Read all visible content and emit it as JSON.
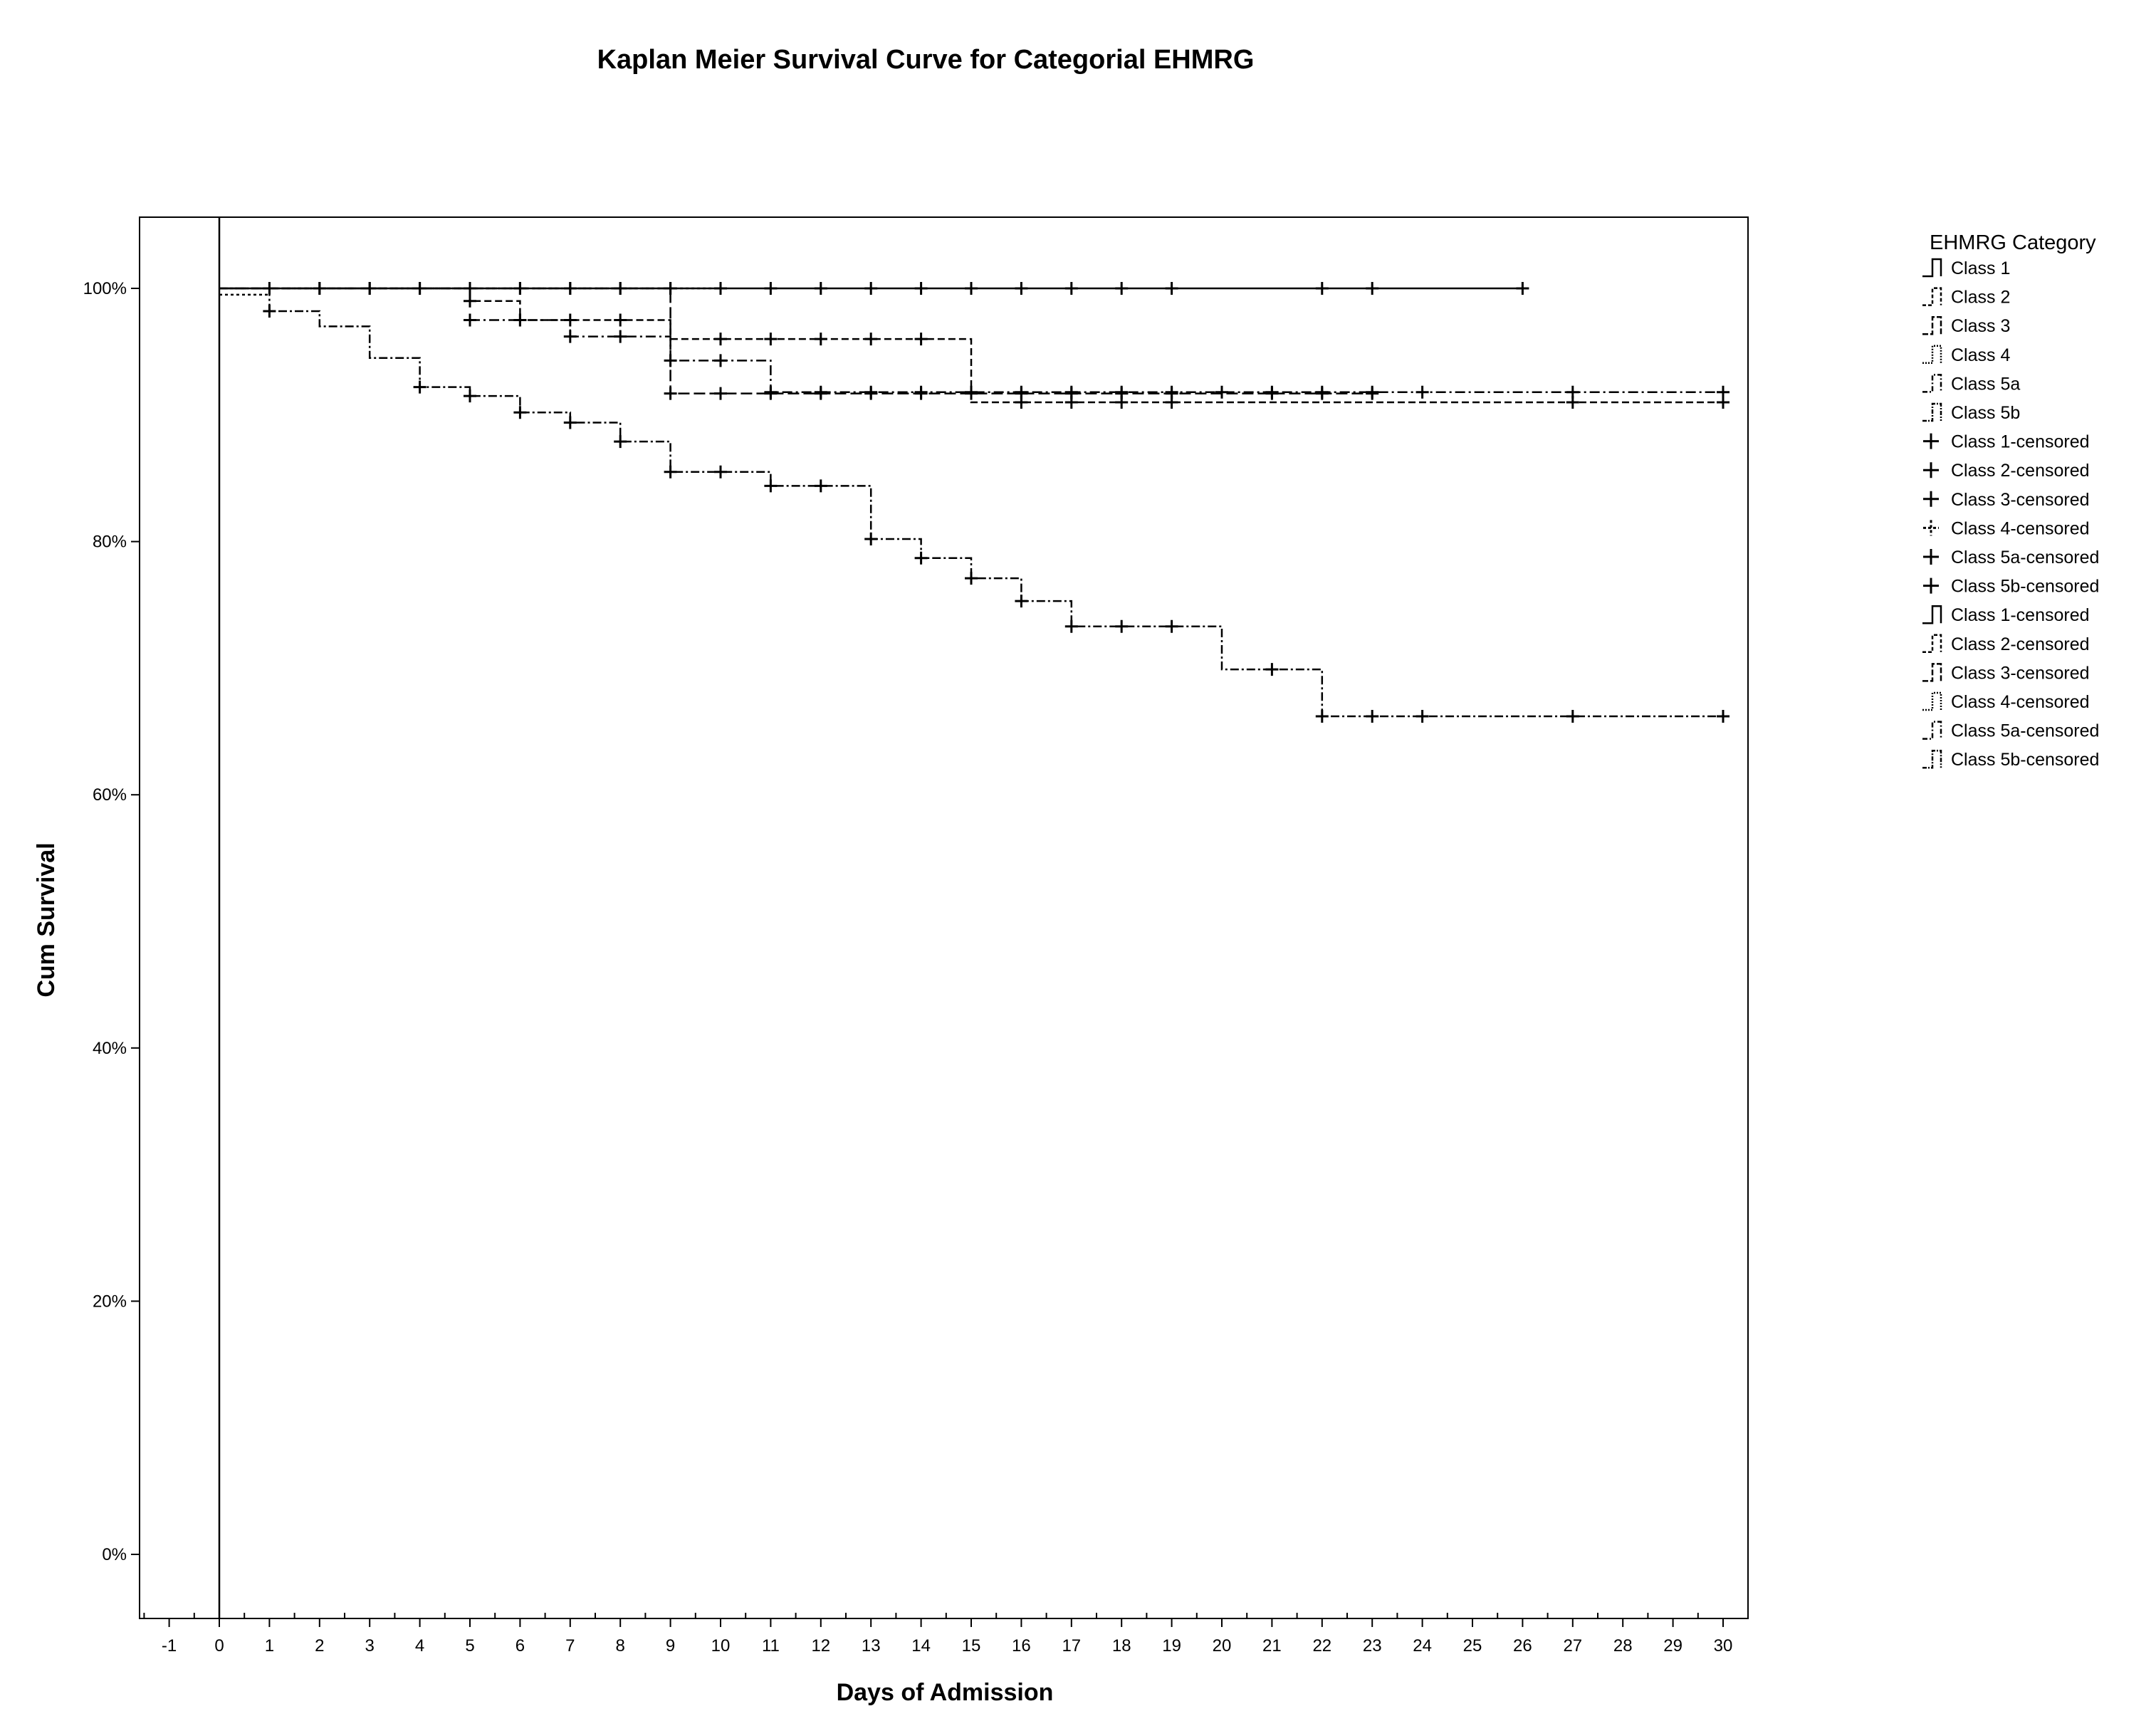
{
  "chart_data": {
    "type": "line",
    "title": "Kaplan Meier Survival Curve for Categorial EHMRG",
    "xlabel": "Days of Admission",
    "ylabel": "Cum Survival",
    "xlim": [
      -1,
      30
    ],
    "ylim": [
      0,
      1
    ],
    "x_ticks": [
      -1,
      0,
      1,
      2,
      3,
      4,
      5,
      6,
      7,
      8,
      9,
      10,
      11,
      12,
      13,
      14,
      15,
      16,
      17,
      18,
      19,
      20,
      21,
      22,
      23,
      24,
      25,
      26,
      27,
      28,
      29,
      30
    ],
    "y_ticks": [
      0,
      0.2,
      0.4,
      0.6,
      0.8,
      1.0
    ],
    "y_tick_labels": [
      "0%",
      "20%",
      "40%",
      "60%",
      "80%",
      "100%"
    ],
    "grid": false,
    "legend_position": "right",
    "legend_title": "EHMRG Category",
    "legend_items": [
      {
        "label": "Class 1",
        "kind": "line",
        "dash": ""
      },
      {
        "label": "Class 2",
        "kind": "line",
        "dash": "10,5"
      },
      {
        "label": "Class 3",
        "kind": "line",
        "dash": "16,6"
      },
      {
        "label": "Class 4",
        "kind": "line",
        "dash": "4,4"
      },
      {
        "label": "Class 5a",
        "kind": "line",
        "dash": "14,5,3,5"
      },
      {
        "label": "Class 5b",
        "kind": "line",
        "dash": "12,4,3,4"
      },
      {
        "label": "Class 1-censored",
        "kind": "marker",
        "dash": ""
      },
      {
        "label": "Class 2-censored",
        "kind": "marker",
        "dash": ""
      },
      {
        "label": "Class 3-censored",
        "kind": "marker",
        "dash": ""
      },
      {
        "label": "Class 4-censored",
        "kind": "marker",
        "dash": "4,3"
      },
      {
        "label": "Class 5a-censored",
        "kind": "marker",
        "dash": ""
      },
      {
        "label": "Class 5b-censored",
        "kind": "marker",
        "dash": ""
      },
      {
        "label": "Class 1-censored",
        "kind": "line",
        "dash": ""
      },
      {
        "label": "Class 2-censored",
        "kind": "line",
        "dash": "10,5"
      },
      {
        "label": "Class 3-censored",
        "kind": "line",
        "dash": "16,6"
      },
      {
        "label": "Class 4-censored",
        "kind": "line",
        "dash": "4,4"
      },
      {
        "label": "Class 5a-censored",
        "kind": "line",
        "dash": "14,5,3,5"
      },
      {
        "label": "Class 5b-censored",
        "kind": "line",
        "dash": "12,4,3,4"
      }
    ],
    "series": [
      {
        "name": "Class 1",
        "dash": "",
        "steps": [
          [
            0,
            1.0
          ]
        ],
        "end_x": 26,
        "censored": [
          1,
          2,
          3,
          4,
          5,
          6,
          7,
          8,
          9,
          10,
          11,
          12,
          13,
          14,
          15,
          16,
          17,
          18,
          19,
          22,
          23,
          26
        ]
      },
      {
        "name": "Class 2",
        "dash": "10,5",
        "steps": [
          [
            0,
            1.0
          ],
          [
            5,
            0.99
          ],
          [
            6,
            0.975
          ],
          [
            9,
            0.96
          ],
          [
            15,
            0.91
          ]
        ],
        "end_x": 30,
        "censored": [
          5,
          6,
          7,
          8,
          10,
          11,
          12,
          13,
          14,
          16,
          17,
          18,
          19,
          27,
          30
        ]
      },
      {
        "name": "Class 3",
        "dash": "16,6",
        "steps": [
          [
            0,
            1.0
          ],
          [
            9,
            0.917
          ]
        ],
        "end_x": 23,
        "censored": [
          9,
          10,
          11,
          12,
          13,
          14,
          15,
          16,
          17,
          18,
          19,
          21,
          22,
          23
        ]
      },
      {
        "name": "Class 4",
        "dash": "4,4",
        "steps": [
          [
            0,
            0.995
          ],
          [
            1,
            1.0
          ]
        ],
        "end_x": 10,
        "censored": [
          2,
          3,
          4,
          5,
          6,
          7,
          8,
          9,
          10
        ]
      },
      {
        "name": "Class 5a",
        "dash": "14,5,3,5",
        "steps": [
          [
            5,
            0.975
          ],
          [
            7,
            0.962
          ],
          [
            9,
            0.943
          ],
          [
            11,
            0.918
          ]
        ],
        "end_x": 30,
        "censored": [
          5,
          6,
          7,
          8,
          9,
          10,
          11,
          12,
          13,
          14,
          15,
          16,
          17,
          18,
          19,
          20,
          21,
          22,
          23,
          24,
          27,
          30
        ]
      },
      {
        "name": "Class 5b",
        "dash": "12,4,3,4",
        "steps": [
          [
            0,
            1.0
          ],
          [
            1,
            0.982
          ],
          [
            2,
            0.97
          ],
          [
            3,
            0.945
          ],
          [
            4,
            0.922
          ],
          [
            5,
            0.915
          ],
          [
            6,
            0.902
          ],
          [
            7,
            0.894
          ],
          [
            8,
            0.879
          ],
          [
            9,
            0.855
          ],
          [
            11,
            0.844
          ],
          [
            13,
            0.802
          ],
          [
            14,
            0.787
          ],
          [
            15,
            0.771
          ],
          [
            16,
            0.753
          ],
          [
            17,
            0.733
          ],
          [
            20,
            0.699
          ],
          [
            22,
            0.662
          ]
        ],
        "end_x": 30,
        "censored": [
          1,
          4,
          5,
          6,
          7,
          8,
          9,
          10,
          11,
          12,
          13,
          14,
          15,
          16,
          17,
          18,
          19,
          21,
          22,
          23,
          24,
          27,
          30
        ]
      }
    ]
  }
}
